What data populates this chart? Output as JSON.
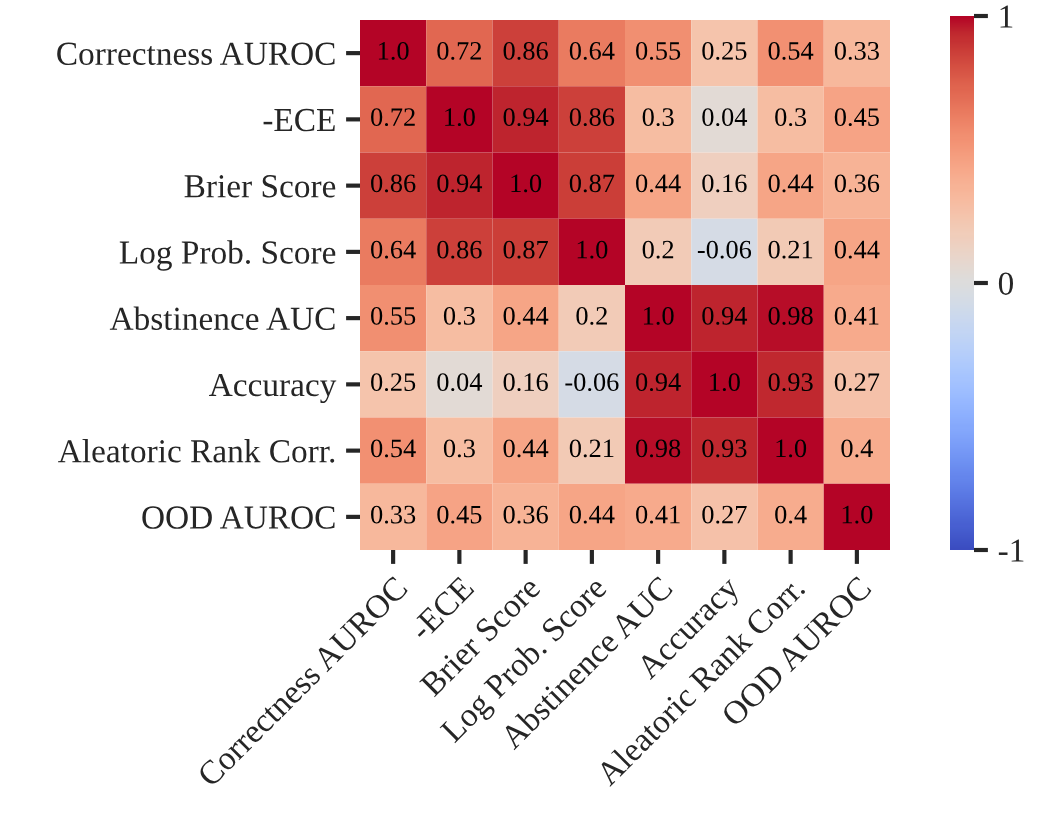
{
  "chart_data": {
    "type": "heatmap",
    "categories": [
      "Correctness AUROC",
      "-ECE",
      "Brier Score",
      "Log Prob. Score",
      "Abstinence AUC",
      "Accuracy",
      "Aleatoric Rank Corr.",
      "OOD AUROC"
    ],
    "y_categories": [
      "Correctness AUROC",
      "-ECE",
      "Brier Score",
      "Log Prob. Score",
      "Abstinence AUC",
      "Accuracy",
      "Aleatoric Rank Corr.",
      "OOD AUROC"
    ],
    "cells": [
      [
        1.0,
        0.72,
        0.86,
        0.64,
        0.55,
        0.25,
        0.54,
        0.33
      ],
      [
        0.72,
        1.0,
        0.94,
        0.86,
        0.3,
        0.04,
        0.3,
        0.45
      ],
      [
        0.86,
        0.94,
        1.0,
        0.87,
        0.44,
        0.16,
        0.44,
        0.36
      ],
      [
        0.64,
        0.86,
        0.87,
        1.0,
        0.2,
        -0.06,
        0.21,
        0.44
      ],
      [
        0.55,
        0.3,
        0.44,
        0.2,
        1.0,
        0.94,
        0.98,
        0.41
      ],
      [
        0.25,
        0.04,
        0.16,
        -0.06,
        0.94,
        1.0,
        0.93,
        0.27
      ],
      [
        0.54,
        0.3,
        0.44,
        0.21,
        0.98,
        0.93,
        1.0,
        0.4
      ],
      [
        0.33,
        0.45,
        0.36,
        0.44,
        0.41,
        0.27,
        0.4,
        1.0
      ]
    ],
    "cell_labels": [
      [
        "1.0",
        "0.72",
        "0.86",
        "0.64",
        "0.55",
        "0.25",
        "0.54",
        "0.33"
      ],
      [
        "0.72",
        "1.0",
        "0.94",
        "0.86",
        "0.3",
        "0.04",
        "0.3",
        "0.45"
      ],
      [
        "0.86",
        "0.94",
        "1.0",
        "0.87",
        "0.44",
        "0.16",
        "0.44",
        "0.36"
      ],
      [
        "0.64",
        "0.86",
        "0.87",
        "1.0",
        "0.2",
        "-0.06",
        "0.21",
        "0.44"
      ],
      [
        "0.55",
        "0.3",
        "0.44",
        "0.2",
        "1.0",
        "0.94",
        "0.98",
        "0.41"
      ],
      [
        "0.25",
        "0.04",
        "0.16",
        "-0.06",
        "0.94",
        "1.0",
        "0.93",
        "0.27"
      ],
      [
        "0.54",
        "0.3",
        "0.44",
        "0.21",
        "0.98",
        "0.93",
        "1.0",
        "0.4"
      ],
      [
        "0.33",
        "0.45",
        "0.36",
        "0.44",
        "0.41",
        "0.27",
        "0.4",
        "1.0"
      ]
    ],
    "clim": [
      -1,
      1
    ],
    "cticks": [
      -1,
      0,
      1
    ],
    "data_labels": true
  }
}
